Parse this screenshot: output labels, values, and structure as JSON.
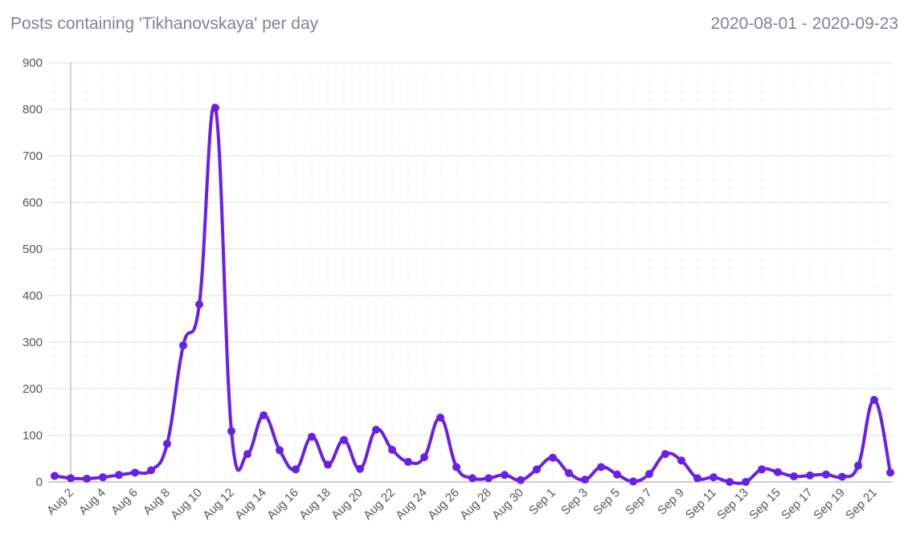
{
  "header": {
    "title": "Posts containing 'Tikhanovskaya' per day",
    "date_range": "2020-08-01 - 2020-09-23"
  },
  "chart_data": {
    "type": "line",
    "categories": [
      null,
      "Aug 2",
      null,
      "Aug 4",
      null,
      "Aug 6",
      null,
      "Aug 8",
      null,
      "Aug 10",
      null,
      "Aug 12",
      null,
      "Aug 14",
      null,
      "Aug 16",
      null,
      "Aug 18",
      null,
      "Aug 20",
      null,
      "Aug 22",
      null,
      "Aug 24",
      null,
      "Aug 26",
      null,
      "Aug 28",
      null,
      "Aug 30",
      null,
      "Sep 1",
      null,
      "Sep 3",
      null,
      "Sep 5",
      null,
      "Sep 7",
      null,
      "Sep 9",
      null,
      "Sep 11",
      null,
      "Sep 13",
      null,
      "Sep 15",
      null,
      "Sep 17",
      null,
      "Sep 19",
      null,
      "Sep 21",
      null
    ],
    "series": [
      {
        "name": "Posts",
        "color": "#6a1ee8",
        "values": [
          13,
          8,
          7,
          10,
          15,
          20,
          25,
          82,
          293,
          381,
          803,
          109,
          60,
          143,
          68,
          27,
          97,
          37,
          90,
          28,
          112,
          69,
          43,
          53,
          138,
          32,
          8,
          8,
          15,
          4,
          27,
          52,
          19,
          5,
          32,
          16,
          1,
          17,
          60,
          46,
          8,
          10,
          0,
          0,
          27,
          21,
          12,
          14,
          16,
          11,
          35,
          176,
          20
        ]
      }
    ],
    "ylim": [
      0,
      900
    ],
    "yticks": [
      0,
      100,
      200,
      300,
      400,
      500,
      600,
      700,
      800,
      900
    ],
    "grid": true
  }
}
